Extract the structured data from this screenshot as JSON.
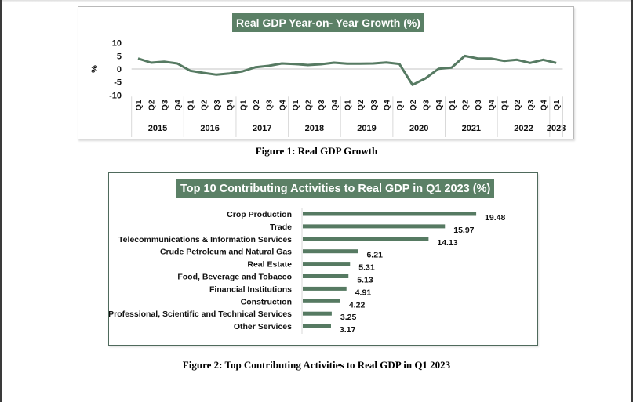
{
  "figure1": {
    "caption": "Figure 1: Real GDP Growth"
  },
  "figure2": {
    "caption": "Figure 2: Top Contributing Activities to Real GDP in Q1 2023"
  },
  "colors": {
    "series": "#567a62",
    "title_bg": "#5b8066",
    "zero_line": "#d9d9d9"
  },
  "chart_data": [
    {
      "type": "line",
      "title": "Real GDP Year-on- Year Growth (%)",
      "ylabel": "%",
      "xlabel": "",
      "ylim": [
        -10,
        10
      ],
      "yticks": [
        10,
        5,
        0,
        -5,
        -10
      ],
      "grid": false,
      "legend": "none",
      "x_groups": [
        {
          "year": "2015",
          "quarters": [
            "Q1",
            "Q2",
            "Q3",
            "Q4"
          ]
        },
        {
          "year": "2016",
          "quarters": [
            "Q1",
            "Q2",
            "Q3",
            "Q4"
          ]
        },
        {
          "year": "2017",
          "quarters": [
            "Q1",
            "Q2",
            "Q3",
            "Q4"
          ]
        },
        {
          "year": "2018",
          "quarters": [
            "Q1",
            "Q2",
            "Q3",
            "Q4"
          ]
        },
        {
          "year": "2019",
          "quarters": [
            "Q1",
            "Q2",
            "Q3",
            "Q4"
          ]
        },
        {
          "year": "2020",
          "quarters": [
            "Q1",
            "Q2",
            "Q3",
            "Q4"
          ]
        },
        {
          "year": "2021",
          "quarters": [
            "Q1",
            "Q2",
            "Q3",
            "Q4"
          ]
        },
        {
          "year": "2022",
          "quarters": [
            "Q1",
            "Q2",
            "Q3",
            "Q4"
          ]
        },
        {
          "year": "2023",
          "quarters": [
            "Q1"
          ]
        }
      ],
      "series": [
        {
          "name": "Real GDP Year-on-Year Growth",
          "values": [
            4.0,
            2.4,
            2.8,
            2.1,
            -0.7,
            -1.5,
            -2.2,
            -1.7,
            -0.9,
            0.7,
            1.2,
            2.1,
            1.9,
            1.5,
            1.8,
            2.4,
            2.0,
            2.0,
            2.1,
            2.5,
            1.9,
            -6.1,
            -3.6,
            0.1,
            0.5,
            5.0,
            4.0,
            4.0,
            3.1,
            3.5,
            2.3,
            3.5,
            2.3
          ]
        }
      ]
    },
    {
      "type": "bar",
      "orientation": "horizontal",
      "title": "Top 10 Contributing Activities to Real GDP in Q1 2023 (%)",
      "xlabel": "",
      "ylabel": "",
      "xlim": [
        0,
        20
      ],
      "grid": false,
      "legend": "none",
      "categories": [
        "Crop Production",
        "Trade",
        "Telecommunications & Information Services",
        "Crude Petroleum and Natural Gas",
        "Real Estate",
        "Food, Beverage and Tobacco",
        "Financial Institutions",
        "Construction",
        "Professional, Scientific and Technical Services",
        "Other Services"
      ],
      "values": [
        19.48,
        15.97,
        14.13,
        6.21,
        5.31,
        5.13,
        4.91,
        4.22,
        3.25,
        3.17
      ],
      "value_labels": [
        "19.48",
        "15.97",
        "14.13",
        "6.21",
        "5.31",
        "5.13",
        "4.91",
        "4.22",
        "3.25",
        "3.17"
      ]
    }
  ]
}
